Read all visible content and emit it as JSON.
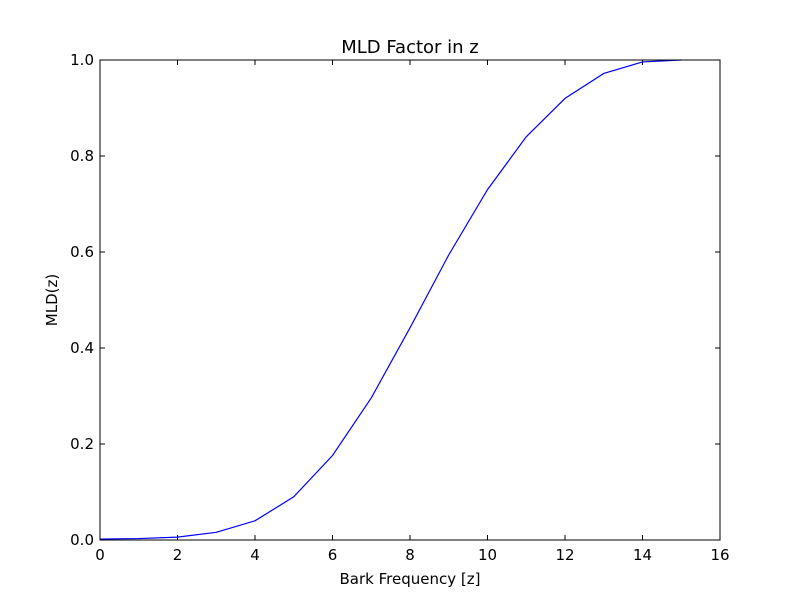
{
  "chart_data": {
    "type": "line",
    "title": "MLD Factor in z",
    "xlabel": "Bark Frequency [z]",
    "ylabel": "MLD(z)",
    "xlim": [
      0,
      16
    ],
    "ylim": [
      0.0,
      1.0
    ],
    "x_ticks": [
      "0",
      "2",
      "4",
      "6",
      "8",
      "10",
      "12",
      "14",
      "16"
    ],
    "y_ticks": [
      "0.0",
      "0.2",
      "0.4",
      "0.6",
      "0.8",
      "1.0"
    ],
    "grid": false,
    "series": [
      {
        "color": "#0000ff",
        "x": [
          0,
          1,
          2,
          3,
          4,
          5,
          6,
          7,
          8,
          9,
          10,
          11,
          12,
          13,
          14,
          15
        ],
        "y": [
          0.002,
          0.003,
          0.006,
          0.016,
          0.04,
          0.09,
          0.176,
          0.296,
          0.442,
          0.594,
          0.73,
          0.84,
          0.92,
          0.972,
          0.996,
          1.0
        ]
      }
    ]
  }
}
